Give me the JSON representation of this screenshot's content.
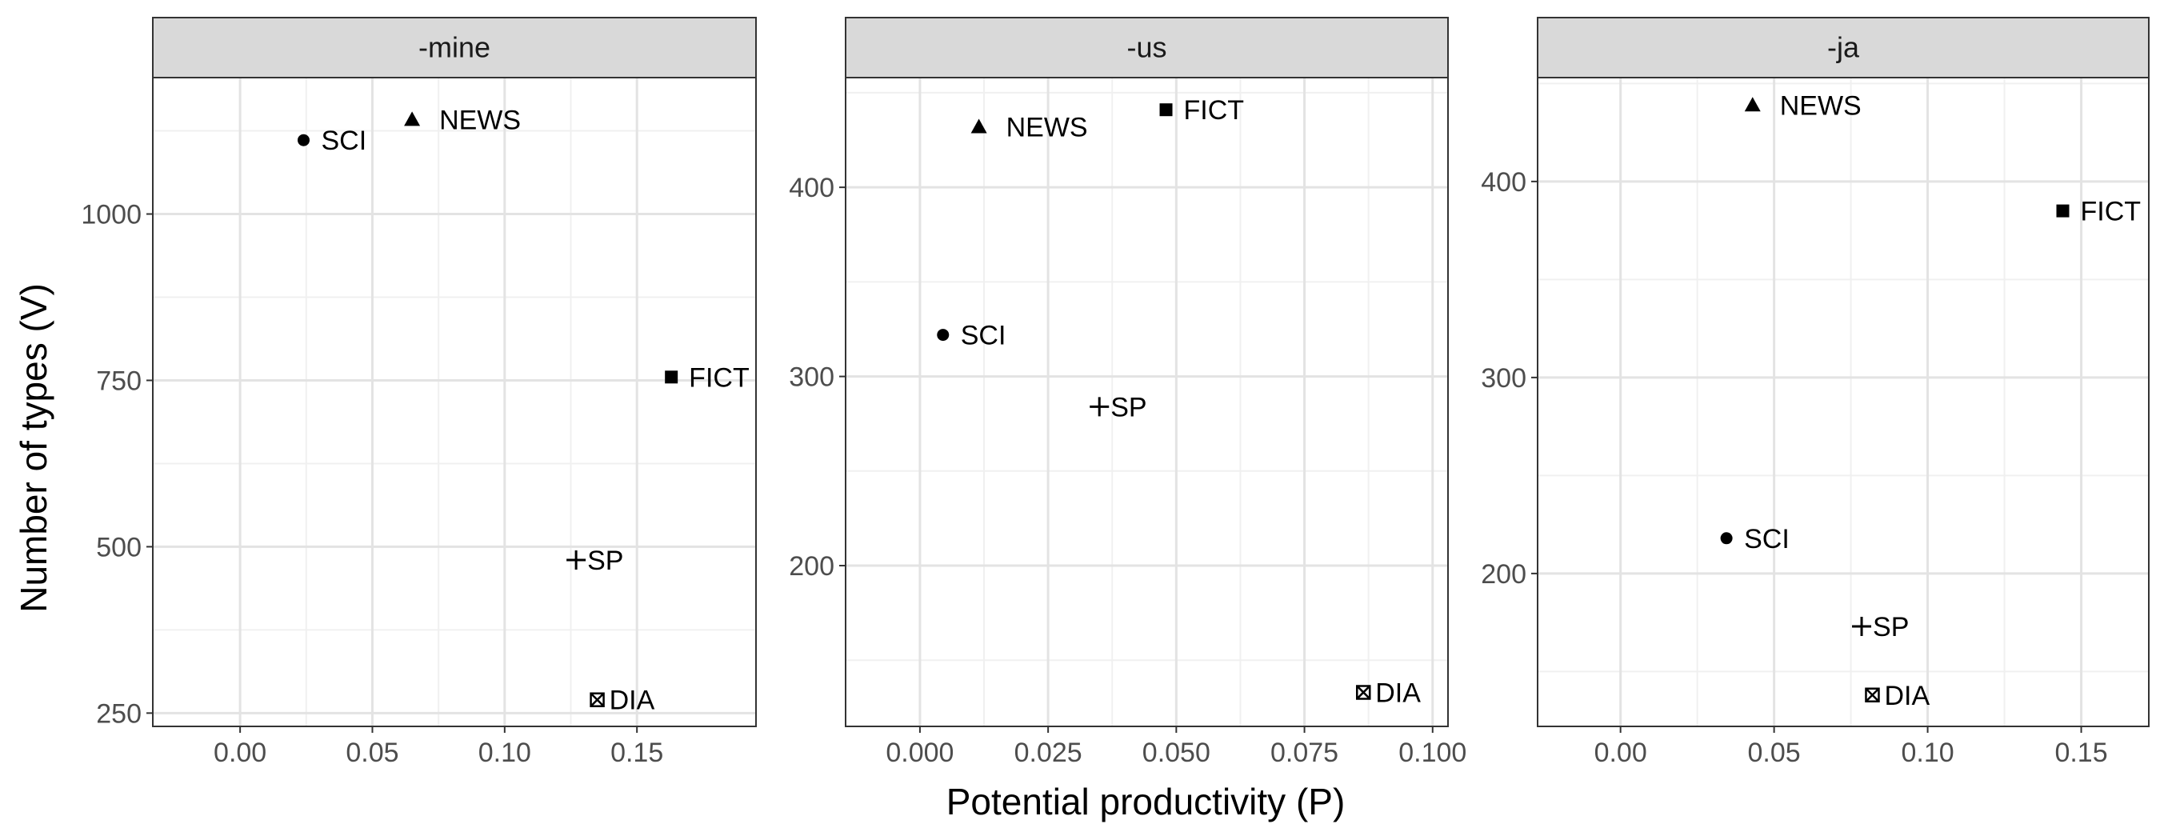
{
  "chart_data": {
    "type": "scatter",
    "xlabel": "Potential productivity (P)",
    "ylabel": "Number of types (V)",
    "grid": true,
    "facets": [
      {
        "title": "-mine",
        "xlim": [
          -0.033,
          0.195
        ],
        "ylim": [
          230,
          1205
        ],
        "xticks": [
          0.0,
          0.05,
          0.1,
          0.15
        ],
        "xtick_labels": [
          "0.00",
          "0.05",
          "0.10",
          "0.15"
        ],
        "yticks": [
          250,
          500,
          750,
          1000
        ],
        "ytick_labels": [
          "250",
          "500",
          "750",
          "1000"
        ],
        "points": [
          {
            "label": "SCI",
            "x": 0.024,
            "y": 1111,
            "shape": "circle"
          },
          {
            "label": "NEWS",
            "x": 0.065,
            "y": 1142,
            "shape": "triangle"
          },
          {
            "label": "FICT",
            "x": 0.163,
            "y": 755,
            "shape": "square"
          },
          {
            "label": "SP",
            "x": 0.127,
            "y": 480,
            "shape": "plus"
          },
          {
            "label": "DIA",
            "x": 0.135,
            "y": 270,
            "shape": "boxx"
          }
        ]
      },
      {
        "title": "-us",
        "xlim": [
          -0.0145,
          0.103
        ],
        "ylim": [
          115,
          458
        ],
        "xticks": [
          0.0,
          0.025,
          0.05,
          0.075,
          0.1
        ],
        "xtick_labels": [
          "0.000",
          "0.025",
          "0.050",
          "0.075",
          "0.100"
        ],
        "yticks": [
          200,
          300,
          400
        ],
        "ytick_labels": [
          "200",
          "300",
          "400"
        ],
        "points": [
          {
            "label": "FICT",
            "x": 0.048,
            "y": 441,
            "shape": "square"
          },
          {
            "label": "NEWS",
            "x": 0.0115,
            "y": 432,
            "shape": "triangle"
          },
          {
            "label": "SCI",
            "x": 0.0045,
            "y": 322,
            "shape": "circle"
          },
          {
            "label": "SP",
            "x": 0.035,
            "y": 284,
            "shape": "plus"
          },
          {
            "label": "DIA",
            "x": 0.0865,
            "y": 133,
            "shape": "boxx"
          }
        ]
      },
      {
        "title": "-ja",
        "xlim": [
          -0.027,
          0.172
        ],
        "ylim": [
          122,
          453
        ],
        "xticks": [
          0.0,
          0.05,
          0.1,
          0.15
        ],
        "xtick_labels": [
          "0.00",
          "0.05",
          "0.10",
          "0.15"
        ],
        "yticks": [
          200,
          300,
          400
        ],
        "ytick_labels": [
          "200",
          "300",
          "400"
        ],
        "points": [
          {
            "label": "NEWS",
            "x": 0.043,
            "y": 439,
            "shape": "triangle"
          },
          {
            "label": "FICT",
            "x": 0.144,
            "y": 385,
            "shape": "square"
          },
          {
            "label": "SCI",
            "x": 0.0345,
            "y": 218,
            "shape": "circle"
          },
          {
            "label": "SP",
            "x": 0.0785,
            "y": 173,
            "shape": "plus"
          },
          {
            "label": "DIA",
            "x": 0.082,
            "y": 138,
            "shape": "boxx"
          }
        ]
      }
    ]
  }
}
